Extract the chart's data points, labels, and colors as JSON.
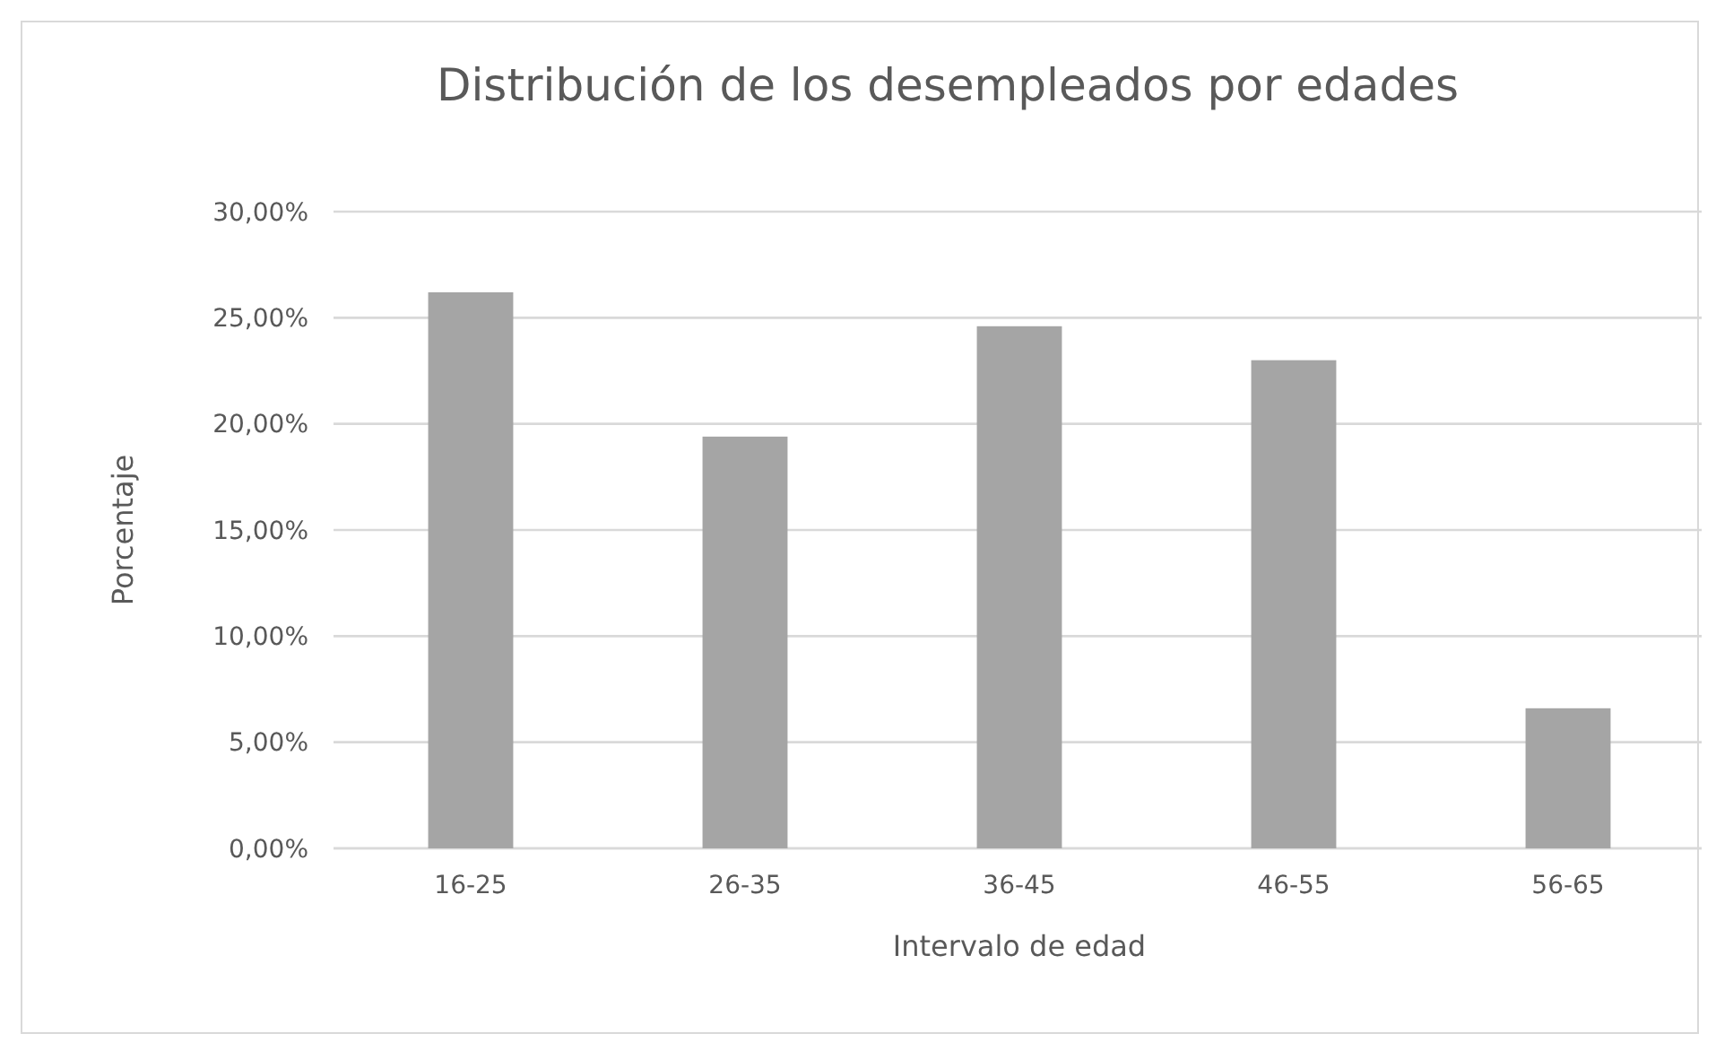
{
  "chart_data": {
    "type": "bar",
    "title": "Distribución de los desempleados por edades",
    "xlabel": "Intervalo de edad",
    "ylabel": "Porcentaje",
    "categories": [
      "16-25",
      "26-35",
      "36-45",
      "46-55",
      "56-65"
    ],
    "values": [
      26.2,
      19.4,
      24.6,
      23.0,
      6.6
    ],
    "color": "#a5a5a5",
    "ylim": [
      0,
      30
    ],
    "yticks": [
      {
        "value": 0,
        "label": "0,00%"
      },
      {
        "value": 5,
        "label": "5,00%"
      },
      {
        "value": 10,
        "label": "10,00%"
      },
      {
        "value": 15,
        "label": "15,00%"
      },
      {
        "value": 20,
        "label": "20,00%"
      },
      {
        "value": 25,
        "label": "25,00%"
      },
      {
        "value": 30,
        "label": "30,00%"
      }
    ],
    "grid": "y"
  }
}
